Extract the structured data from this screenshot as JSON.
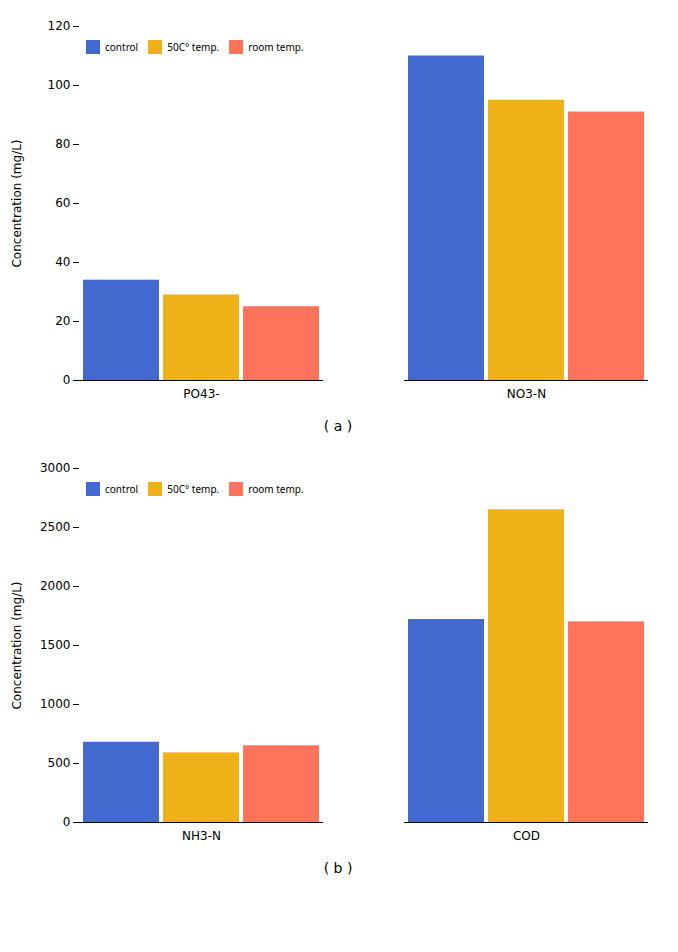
{
  "chart_data": [
    {
      "type": "bar",
      "subtitle": "( a )",
      "categories": [
        "PO43-",
        "NO3-N"
      ],
      "series": [
        {
          "name": "control",
          "values": [
            34,
            110
          ]
        },
        {
          "name": "50C° temp.",
          "values": [
            29,
            95
          ]
        },
        {
          "name": "room temp.",
          "values": [
            25,
            91
          ]
        }
      ],
      "ylabel": "Concentration (mg/L)",
      "ylim": [
        0,
        120
      ],
      "yticks": [
        0,
        20,
        40,
        60,
        80,
        100,
        120
      ],
      "grid": false,
      "legend": "upper left"
    },
    {
      "type": "bar",
      "subtitle": "( b )",
      "categories": [
        "NH3-N",
        "COD"
      ],
      "series": [
        {
          "name": "control",
          "values": [
            680,
            1720
          ]
        },
        {
          "name": "50C° temp.",
          "values": [
            590,
            2650
          ]
        },
        {
          "name": "room temp.",
          "values": [
            650,
            1700
          ]
        }
      ],
      "ylabel": "Concentration (mg/L)",
      "ylim": [
        0,
        3000
      ],
      "yticks": [
        0,
        500,
        1000,
        1500,
        2000,
        2500,
        3000
      ],
      "grid": false,
      "legend": "upper left"
    }
  ]
}
